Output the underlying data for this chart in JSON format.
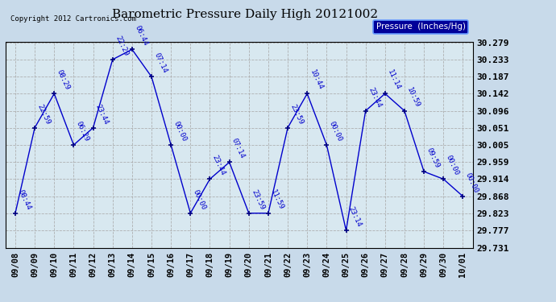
{
  "title": "Barometric Pressure Daily High 20121002",
  "copyright": "Copyright 2012 Cartronics.com",
  "legend_label": "Pressure  (Inches/Hg)",
  "line_color": "#0000cc",
  "point_color": "#000080",
  "label_color": "#0000cc",
  "ylim_min": 29.731,
  "ylim_max": 30.279,
  "yticks": [
    30.279,
    30.233,
    30.187,
    30.142,
    30.096,
    30.051,
    30.005,
    29.959,
    29.914,
    29.868,
    29.823,
    29.777,
    29.731
  ],
  "dates": [
    "09/08",
    "09/09",
    "09/10",
    "09/11",
    "09/12",
    "09/13",
    "09/14",
    "09/15",
    "09/16",
    "09/17",
    "09/18",
    "09/19",
    "09/20",
    "09/21",
    "09/22",
    "09/23",
    "09/24",
    "09/25",
    "09/26",
    "09/27",
    "09/28",
    "09/29",
    "09/30",
    "10/01"
  ],
  "values": [
    29.823,
    30.051,
    30.142,
    30.005,
    30.051,
    30.233,
    30.26,
    30.187,
    30.005,
    29.823,
    29.914,
    29.959,
    29.823,
    29.823,
    30.051,
    30.142,
    30.005,
    29.777,
    30.096,
    30.142,
    30.096,
    29.934,
    29.914,
    29.868
  ],
  "annotations": [
    "08:44",
    "22:59",
    "08:29",
    "06:29",
    "23:44",
    "22:29",
    "06:44",
    "07:14",
    "00:00",
    "00:00",
    "23:44",
    "07:14",
    "23:59",
    "11:59",
    "23:59",
    "10:44",
    "00:00",
    "23:14",
    "23:44",
    "11:14",
    "10:59",
    "09:59",
    "00:00",
    "00:00"
  ]
}
